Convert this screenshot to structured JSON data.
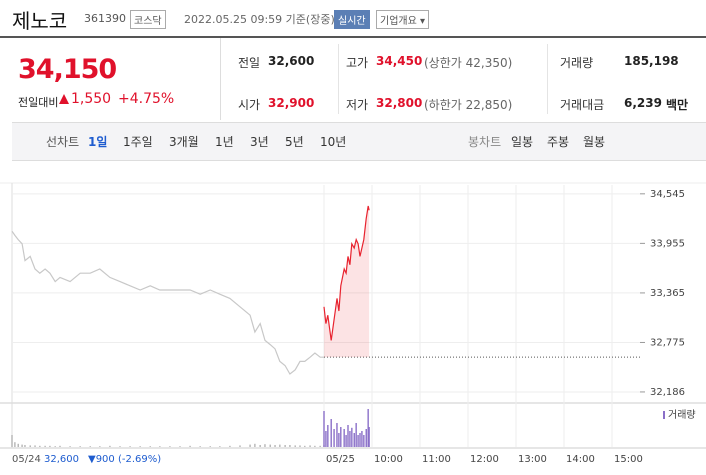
{
  "header": {
    "name": "제노코",
    "code": "361390",
    "market": "코스닥",
    "time": "2022.05.25 09:59 기준(장중)",
    "realtime": "실시간",
    "overview": "기업개요"
  },
  "quote": {
    "price": "34,150",
    "change_label": "전일대비",
    "change": "1,550",
    "rate": "+4.75%"
  },
  "stats": [
    {
      "label": "전일",
      "value": "32,600"
    },
    {
      "label": "고가",
      "value": "34,450",
      "note": "(상한가 42,350)"
    },
    {
      "label": "거래량",
      "value": "185,198"
    },
    {
      "label": "시가",
      "value": "32,900"
    },
    {
      "label": "저가",
      "value": "32,800",
      "note": "(하한가 22,850)"
    },
    {
      "label": "거래대금",
      "value": "6,239",
      "unit": "백만"
    }
  ],
  "tabs": {
    "line_label": "선차트",
    "line_periods": [
      "1일",
      "1주일",
      "3개월",
      "1년",
      "3년",
      "5년",
      "10년"
    ],
    "candle_label": "봉차트",
    "candle_periods": [
      "일봉",
      "주봉",
      "월봉"
    ]
  },
  "previous_day": {
    "date": "05/24",
    "close": "32,600",
    "change": "▼900",
    "rate": "(-2.69%)"
  },
  "chart_data": {
    "type": "line",
    "xlim": [
      0,
      13
    ],
    "xticks": [
      {
        "value": 6.5,
        "label": "05/25"
      },
      {
        "value": 7.5,
        "label": "10:00"
      },
      {
        "value": 8.5,
        "label": "11:00"
      },
      {
        "value": 9.5,
        "label": "12:00"
      },
      {
        "value": 10.5,
        "label": "13:00"
      },
      {
        "value": 11.5,
        "label": "14:00"
      },
      {
        "value": 12.5,
        "label": "15:00"
      }
    ],
    "ylim": [
      32090,
      34650
    ],
    "yticks": [
      {
        "value": 32186,
        "label": "32,186"
      },
      {
        "value": 32775,
        "label": "32,775"
      },
      {
        "value": 33365,
        "label": "33,365"
      },
      {
        "value": 33955,
        "label": "33,955"
      },
      {
        "value": 34545,
        "label": "34,545"
      }
    ],
    "grid": true,
    "reference": 32600,
    "volume_label": "거래량",
    "volume_ylim": [
      0,
      100
    ],
    "series": [
      {
        "color": "#c8c8c8",
        "volume_color": "#b4b4b4",
        "area": false,
        "x": [
          0,
          0.06,
          0.13,
          0.21,
          0.27,
          0.38,
          0.48,
          0.58,
          0.69,
          0.79,
          0.9,
          1,
          1.21,
          1.42,
          1.63,
          1.83,
          2.04,
          2.25,
          2.46,
          2.67,
          2.88,
          3.08,
          3.29,
          3.5,
          3.71,
          3.92,
          4.13,
          4.33,
          4.54,
          4.75,
          4.96,
          5.06,
          5.17,
          5.27,
          5.38,
          5.48,
          5.58,
          5.69,
          5.79,
          5.9,
          6,
          6.1,
          6.21,
          6.31,
          6.42,
          6.5
        ],
        "values": [
          34100,
          34050,
          34000,
          33950,
          33750,
          33800,
          33650,
          33600,
          33650,
          33600,
          33500,
          33550,
          33500,
          33600,
          33600,
          33650,
          33550,
          33500,
          33450,
          33400,
          33450,
          33400,
          33400,
          33400,
          33400,
          33350,
          33400,
          33350,
          33300,
          33200,
          33100,
          32900,
          33000,
          32800,
          32750,
          32700,
          32550,
          32500,
          32400,
          32450,
          32550,
          32550,
          32600,
          32650,
          32600,
          32600
        ],
        "volume": [
          30,
          12,
          8,
          6,
          5,
          4,
          4,
          3,
          3,
          3,
          2,
          3,
          2,
          2,
          2,
          2,
          3,
          2,
          2,
          2,
          2,
          2,
          2,
          2,
          3,
          2,
          2,
          2,
          3,
          4,
          6,
          8,
          5,
          7,
          6,
          5,
          6,
          5,
          5,
          4,
          4,
          3,
          4,
          3,
          3,
          5
        ]
      },
      {
        "color": "#e8232f",
        "volume_color": "#8a6fc8",
        "area": true,
        "x": [
          6.5,
          6.54,
          6.58,
          6.65,
          6.71,
          6.77,
          6.81,
          6.85,
          6.92,
          6.96,
          7,
          7.04,
          7.08,
          7.13,
          7.17,
          7.21,
          7.25,
          7.29,
          7.33,
          7.38,
          7.42,
          7.44
        ],
        "values": [
          33200,
          33000,
          33100,
          32800,
          33050,
          33300,
          33150,
          33450,
          33650,
          33600,
          33800,
          33700,
          33950,
          33900,
          34000,
          33950,
          33800,
          33900,
          34000,
          34250,
          34400,
          34350
        ],
        "volume": [
          90,
          40,
          55,
          70,
          45,
          60,
          35,
          50,
          45,
          30,
          55,
          40,
          48,
          35,
          60,
          30,
          35,
          40,
          30,
          45,
          95,
          50
        ]
      }
    ]
  }
}
